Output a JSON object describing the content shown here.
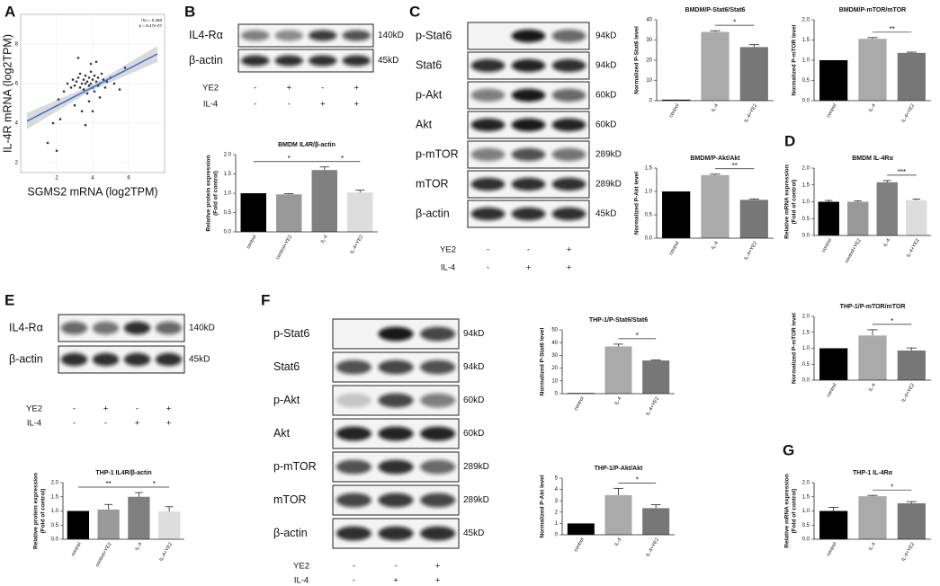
{
  "panel_letters": [
    "A",
    "B",
    "C",
    "D",
    "E",
    "F",
    "G"
  ],
  "chart_data": [
    {
      "type": "scatter",
      "xlabel": "SGMS2 mRNA (log2TPM)",
      "ylabel": "IL-4R mRNA (log2TPM)",
      "annotations": [
        "rho = 0.368",
        "p = 8.47e-07"
      ],
      "color": "#333333",
      "line_color": "#3a6fd8",
      "grid": true,
      "xlim": [
        0,
        8
      ],
      "ylim": [
        1.5,
        9.5
      ],
      "xticks": [
        2,
        4,
        6
      ],
      "yticks": [
        2,
        4,
        6,
        8
      ],
      "x": [
        2.1,
        2.4,
        2.6,
        2.8,
        2.9,
        3.0,
        3.1,
        3.2,
        3.3,
        3.3,
        3.4,
        3.5,
        3.5,
        3.6,
        3.6,
        3.7,
        3.7,
        3.8,
        3.8,
        3.9,
        3.9,
        4.0,
        4.0,
        4.1,
        4.1,
        4.2,
        4.3,
        4.3,
        4.4,
        4.5,
        4.6,
        4.7,
        4.8,
        5.0,
        5.2,
        5.5,
        3.0,
        3.4,
        3.8,
        4.2,
        2.2,
        3.6,
        4.0,
        1.5,
        2.0,
        5.8,
        3.2,
        3.9,
        4.4,
        1.8
      ],
      "y": [
        5.2,
        5.6,
        6.0,
        5.8,
        6.2,
        5.9,
        6.1,
        6.3,
        5.8,
        6.5,
        6.0,
        6.2,
        5.7,
        6.4,
        6.0,
        6.1,
        5.5,
        6.3,
        5.9,
        6.6,
        6.0,
        6.2,
        5.8,
        6.4,
        5.6,
        6.1,
        6.3,
        5.9,
        6.0,
        6.5,
        6.2,
        5.8,
        6.1,
        6.3,
        6.0,
        5.7,
        4.9,
        4.6,
        5.1,
        7.1,
        4.2,
        3.9,
        4.6,
        3.0,
        2.6,
        6.8,
        7.3,
        7.0,
        5.3,
        4.0
      ],
      "fit_line": {
        "x": [
          0.35,
          7.6
        ],
        "y": [
          4.1,
          7.5
        ]
      }
    },
    {
      "type": "bar",
      "title": "BMDM IL4R/β-actin",
      "ylabel": [
        "Relative protein expression",
        "(Fold of control)"
      ],
      "categories": [
        "control",
        "control+YE2",
        "IL-4",
        "IL-4+YE2"
      ],
      "values": [
        1.0,
        0.97,
        1.6,
        1.02
      ],
      "errors": [
        0,
        0.02,
        0.08,
        0.06
      ],
      "colors": [
        "#000000",
        "#999999",
        "#808080",
        "#dddddd"
      ],
      "ylim": [
        0,
        2
      ],
      "yticks": [
        {
          "value": 0,
          "label": "0.0"
        },
        0.5,
        {
          "value": 1,
          "label": "1.0"
        },
        1.5,
        {
          "value": 2,
          "label": "2.0"
        }
      ],
      "significance": [
        {
          "between": [
            "control",
            "IL-4"
          ],
          "label": "*"
        },
        {
          "between": [
            "IL-4",
            "IL-4+YE2"
          ],
          "label": "*"
        }
      ]
    },
    {
      "type": "bar",
      "title": "BMDM/P-Stat6/Stat6",
      "ylabel": [
        "Normalized P-Stat6 level"
      ],
      "categories": [
        "control",
        "IL-4",
        "IL-4+YE2"
      ],
      "values": [
        0.5,
        34,
        26.5
      ],
      "errors": [
        0,
        0.6,
        1.2
      ],
      "colors": [
        "#000000",
        "#aaaaaa",
        "#777777"
      ],
      "ylim": [
        0,
        40
      ],
      "yticks": [
        0,
        10,
        20,
        30,
        40
      ],
      "significance": [
        {
          "between": [
            "IL-4",
            "IL-4+YE2"
          ],
          "label": "*"
        }
      ]
    },
    {
      "type": "bar",
      "title": "BMDM/P-mTOR/mTOR",
      "ylabel": [
        "Normalized P-mTOR level"
      ],
      "categories": [
        "control",
        "IL-4",
        "IL-4+YE2"
      ],
      "values": [
        1.0,
        1.53,
        1.18
      ],
      "errors": [
        0,
        0.03,
        0.02
      ],
      "colors": [
        "#000000",
        "#aaaaaa",
        "#777777"
      ],
      "ylim": [
        0,
        2
      ],
      "yticks": [
        {
          "value": 0,
          "label": "0.0"
        },
        0.5,
        {
          "value": 1,
          "label": "1.0"
        },
        1.5,
        {
          "value": 2,
          "label": "2.0"
        }
      ],
      "significance": [
        {
          "between": [
            "IL-4",
            "IL-4+YE2"
          ],
          "label": "**"
        }
      ]
    },
    {
      "type": "bar",
      "title": "BMDM/P-Akt/Akt",
      "ylabel": [
        "Normalized P-Akt level"
      ],
      "categories": [
        "control",
        "IL-4",
        "IL-4+YE2"
      ],
      "values": [
        1.0,
        1.35,
        0.82
      ],
      "errors": [
        0,
        0.02,
        0.02
      ],
      "colors": [
        "#000000",
        "#aaaaaa",
        "#777777"
      ],
      "ylim": [
        0,
        1.5
      ],
      "yticks": [
        {
          "value": 0,
          "label": "0.0"
        },
        0.5,
        {
          "value": 1,
          "label": "1.0"
        },
        1.5
      ],
      "significance": [
        {
          "between": [
            "IL-4",
            "IL-4+YE2"
          ],
          "label": "**"
        }
      ]
    },
    {
      "type": "bar",
      "title": "BMDM IL-4Rα",
      "ylabel": [
        "Relative mRNA expression",
        "(Fold of control)"
      ],
      "categories": [
        "control",
        "control+YE2",
        "IL-4",
        "IL-4+YE2"
      ],
      "values": [
        1.0,
        1.0,
        1.58,
        1.05
      ],
      "errors": [
        0.04,
        0.03,
        0.05,
        0.03
      ],
      "colors": [
        "#000000",
        "#999999",
        "#808080",
        "#dddddd"
      ],
      "ylim": [
        0,
        2
      ],
      "yticks": [
        {
          "value": 0,
          "label": "0.0"
        },
        0.5,
        {
          "value": 1,
          "label": "1.0"
        },
        1.5,
        {
          "value": 2,
          "label": "2.0"
        }
      ],
      "significance": [
        {
          "between": [
            "IL-4",
            "IL-4+YE2"
          ],
          "label": "***"
        }
      ]
    },
    {
      "type": "bar",
      "title": "THP-1 IL4R/β-actin",
      "ylabel": [
        "Relative protein expression",
        "(Fold of control)"
      ],
      "categories": [
        "control",
        "control+YE2",
        "IL-4",
        "IL-4+YE2"
      ],
      "values": [
        1.0,
        1.05,
        1.5,
        0.98
      ],
      "errors": [
        0,
        0.18,
        0.15,
        0.17
      ],
      "colors": [
        "#000000",
        "#999999",
        "#808080",
        "#dddddd"
      ],
      "ylim": [
        0,
        2
      ],
      "yticks": [
        {
          "value": 0,
          "label": "0.0"
        },
        0.5,
        {
          "value": 1,
          "label": "1.0"
        },
        1.5,
        {
          "value": 2,
          "label": "2.0"
        }
      ],
      "significance": [
        {
          "between": [
            "control",
            "IL-4"
          ],
          "label": "**"
        },
        {
          "between": [
            "IL-4",
            "IL-4+YE2"
          ],
          "label": "*"
        }
      ]
    },
    {
      "type": "bar",
      "title": "THP-1/P-Stat6/Stat6",
      "ylabel": [
        "Normalized P-Stat6 level"
      ],
      "categories": [
        "control",
        "IL-4",
        "IL-4+YE2"
      ],
      "values": [
        0.5,
        37,
        26
      ],
      "errors": [
        0,
        1.8,
        0.4
      ],
      "colors": [
        "#000000",
        "#aaaaaa",
        "#777777"
      ],
      "ylim": [
        0,
        50
      ],
      "yticks": [
        0,
        10,
        20,
        30,
        40,
        50
      ],
      "significance": [
        {
          "between": [
            "IL-4",
            "IL-4+YE2"
          ],
          "label": "*"
        }
      ]
    },
    {
      "type": "bar",
      "title": "THP-1/P-mTOR/mTOR",
      "ylabel": [
        "Normalized P-mTOR level"
      ],
      "categories": [
        "control",
        "IL-4",
        "IL-4+YE2"
      ],
      "values": [
        1.0,
        1.4,
        0.93
      ],
      "errors": [
        0,
        0.18,
        0.08
      ],
      "colors": [
        "#000000",
        "#aaaaaa",
        "#777777"
      ],
      "ylim": [
        0,
        2
      ],
      "yticks": [
        {
          "value": 0,
          "label": "0.0"
        },
        0.5,
        {
          "value": 1,
          "label": "1.0"
        },
        1.5,
        {
          "value": 2,
          "label": "2.0"
        }
      ],
      "significance": [
        {
          "between": [
            "IL-4",
            "IL-4+YE2"
          ],
          "label": "*"
        }
      ]
    },
    {
      "type": "bar",
      "title": "THP-1/P-Akt/Akt",
      "ylabel": [
        "Normalized P-Akt level"
      ],
      "categories": [
        "control",
        "IL-4",
        "IL-4+YE2"
      ],
      "values": [
        1.0,
        3.5,
        2.35
      ],
      "errors": [
        0,
        0.6,
        0.3
      ],
      "colors": [
        "#000000",
        "#aaaaaa",
        "#777777"
      ],
      "ylim": [
        0,
        5
      ],
      "yticks": [
        0,
        1,
        2,
        3,
        4,
        5
      ],
      "significance": [
        {
          "between": [
            "IL-4",
            "IL-4+YE2"
          ],
          "label": "*"
        }
      ]
    },
    {
      "type": "bar",
      "title": "THP-1 IL-4Rα",
      "ylabel": [
        "Relative mRNA expression",
        "(Fold of control)"
      ],
      "categories": [
        "control",
        "IL-4",
        "IL-4+YE2"
      ],
      "values": [
        1.0,
        1.52,
        1.27
      ],
      "errors": [
        0.13,
        0.03,
        0.06
      ],
      "colors": [
        "#000000",
        "#aaaaaa",
        "#777777"
      ],
      "ylim": [
        0,
        2
      ],
      "yticks": [
        {
          "value": 0,
          "label": "0.0"
        },
        0.5,
        {
          "value": 1,
          "label": "1.0"
        },
        1.5,
        {
          "value": 2,
          "label": "2.0"
        }
      ],
      "significance": [
        {
          "between": [
            "IL-4",
            "IL-4+YE2"
          ],
          "label": "*"
        }
      ]
    }
  ],
  "blots": [
    {
      "rows": [
        {
          "name": "IL4-Rα",
          "size": "140kD"
        },
        {
          "name": "β-actin",
          "size": "45kD"
        }
      ],
      "conditions": [
        {
          "name": "YE2",
          "signs": [
            "-",
            "+",
            "-",
            "+"
          ]
        },
        {
          "name": "IL-4",
          "signs": [
            "-",
            "-",
            "+",
            "+"
          ]
        }
      ]
    },
    {
      "rows": [
        {
          "name": "p-Stat6",
          "size": "94kD"
        },
        {
          "name": "Stat6",
          "size": "94kD"
        },
        {
          "name": "p-Akt",
          "size": "60kD"
        },
        {
          "name": "Akt",
          "size": "60kD"
        },
        {
          "name": "p-mTOR",
          "size": "289kD"
        },
        {
          "name": "mTOR",
          "size": "289kD"
        },
        {
          "name": "β-actin",
          "size": "45kD"
        }
      ],
      "conditions": [
        {
          "name": "YE2",
          "signs": [
            "-",
            "-",
            "+"
          ]
        },
        {
          "name": "IL-4",
          "signs": [
            "-",
            "+",
            "+"
          ]
        }
      ]
    },
    {
      "rows": [
        {
          "name": "IL4-Rα",
          "size": "140kD"
        },
        {
          "name": "β-actin",
          "size": "45kD"
        }
      ],
      "conditions": [
        {
          "name": "YE2",
          "signs": [
            "-",
            "+",
            "-",
            "+"
          ]
        },
        {
          "name": "IL-4",
          "signs": [
            "-",
            "-",
            "+",
            "+"
          ]
        }
      ]
    },
    {
      "rows": [
        {
          "name": "p-Stat6",
          "size": "94kD"
        },
        {
          "name": "Stat6",
          "size": "94kD"
        },
        {
          "name": "p-Akt",
          "size": "60kD"
        },
        {
          "name": "Akt",
          "size": "60kD"
        },
        {
          "name": "p-mTOR",
          "size": "289kD"
        },
        {
          "name": "mTOR",
          "size": "289kD"
        },
        {
          "name": "β-actin",
          "size": "45kD"
        }
      ],
      "conditions": [
        {
          "name": "YE2",
          "signs": [
            "-",
            "-",
            "+"
          ]
        },
        {
          "name": "IL-4",
          "signs": [
            "-",
            "+",
            "+"
          ]
        }
      ]
    }
  ]
}
